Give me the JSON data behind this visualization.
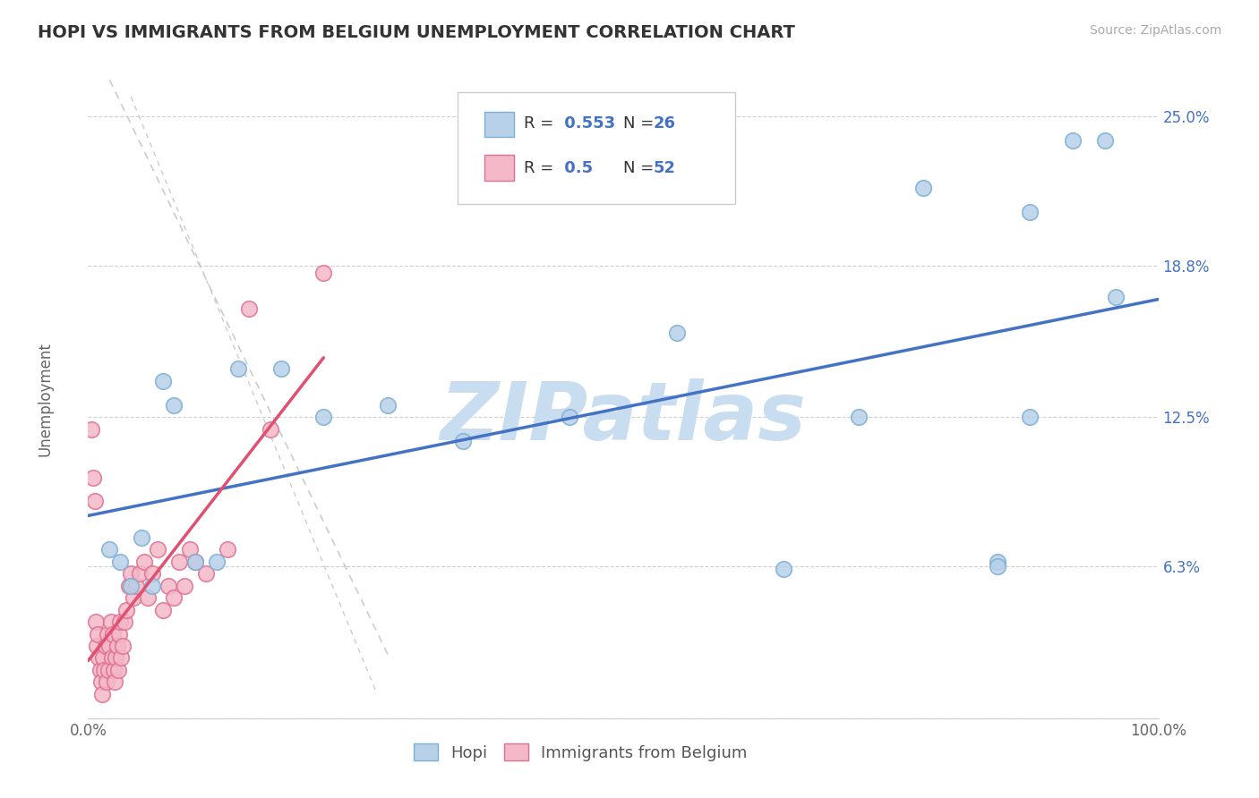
{
  "title": "HOPI VS IMMIGRANTS FROM BELGIUM UNEMPLOYMENT CORRELATION CHART",
  "source_text": "Source: ZipAtlas.com",
  "ylabel": "Unemployment",
  "xlim": [
    0.0,
    1.0
  ],
  "ylim": [
    0.0,
    0.265
  ],
  "yticks": [
    0.0,
    0.063,
    0.125,
    0.188,
    0.25
  ],
  "ytick_labels": [
    "",
    "6.3%",
    "12.5%",
    "18.8%",
    "25.0%"
  ],
  "xticks": [
    0.0,
    0.25,
    0.5,
    0.75,
    1.0
  ],
  "xtick_labels": [
    "0.0%",
    "",
    "",
    "",
    "100.0%"
  ],
  "hopi_R": 0.553,
  "hopi_N": 26,
  "belgium_R": 0.5,
  "belgium_N": 52,
  "hopi_color": "#b8d0e8",
  "hopi_edge_color": "#7aafd4",
  "belgium_color": "#f4b8c8",
  "belgium_edge_color": "#e07090",
  "hopi_line_color": "#4472c4",
  "belgium_line_color": "#e05070",
  "watermark_color": "#c8ddf0",
  "background_color": "#ffffff",
  "hopi_x": [
    0.02,
    0.03,
    0.04,
    0.05,
    0.06,
    0.07,
    0.08,
    0.1,
    0.12,
    0.14,
    0.18,
    0.22,
    0.28,
    0.35,
    0.45,
    0.55,
    0.65,
    0.72,
    0.78,
    0.85,
    0.88,
    0.92,
    0.95,
    0.96,
    0.85,
    0.88
  ],
  "hopi_y": [
    0.07,
    0.065,
    0.055,
    0.075,
    0.055,
    0.14,
    0.13,
    0.065,
    0.065,
    0.145,
    0.145,
    0.125,
    0.13,
    0.115,
    0.125,
    0.16,
    0.062,
    0.125,
    0.22,
    0.065,
    0.21,
    0.24,
    0.24,
    0.175,
    0.063,
    0.125
  ],
  "belgium_x": [
    0.003,
    0.005,
    0.006,
    0.007,
    0.008,
    0.009,
    0.01,
    0.011,
    0.012,
    0.013,
    0.014,
    0.015,
    0.016,
    0.017,
    0.018,
    0.019,
    0.02,
    0.021,
    0.022,
    0.023,
    0.024,
    0.025,
    0.026,
    0.027,
    0.028,
    0.029,
    0.03,
    0.031,
    0.032,
    0.034,
    0.036,
    0.038,
    0.04,
    0.042,
    0.045,
    0.048,
    0.052,
    0.056,
    0.06,
    0.065,
    0.07,
    0.075,
    0.08,
    0.085,
    0.09,
    0.095,
    0.1,
    0.11,
    0.13,
    0.15,
    0.17,
    0.22
  ],
  "belgium_y": [
    0.12,
    0.1,
    0.09,
    0.04,
    0.03,
    0.035,
    0.025,
    0.02,
    0.015,
    0.01,
    0.025,
    0.02,
    0.03,
    0.015,
    0.035,
    0.02,
    0.03,
    0.04,
    0.025,
    0.035,
    0.02,
    0.015,
    0.025,
    0.03,
    0.02,
    0.035,
    0.04,
    0.025,
    0.03,
    0.04,
    0.045,
    0.055,
    0.06,
    0.05,
    0.055,
    0.06,
    0.065,
    0.05,
    0.06,
    0.07,
    0.045,
    0.055,
    0.05,
    0.065,
    0.055,
    0.07,
    0.065,
    0.06,
    0.07,
    0.17,
    0.12,
    0.185
  ],
  "legend_label_color": "#333333",
  "legend_value_color": "#4472c4",
  "axis_label_color": "#4472c4",
  "tick_label_color": "#666666"
}
